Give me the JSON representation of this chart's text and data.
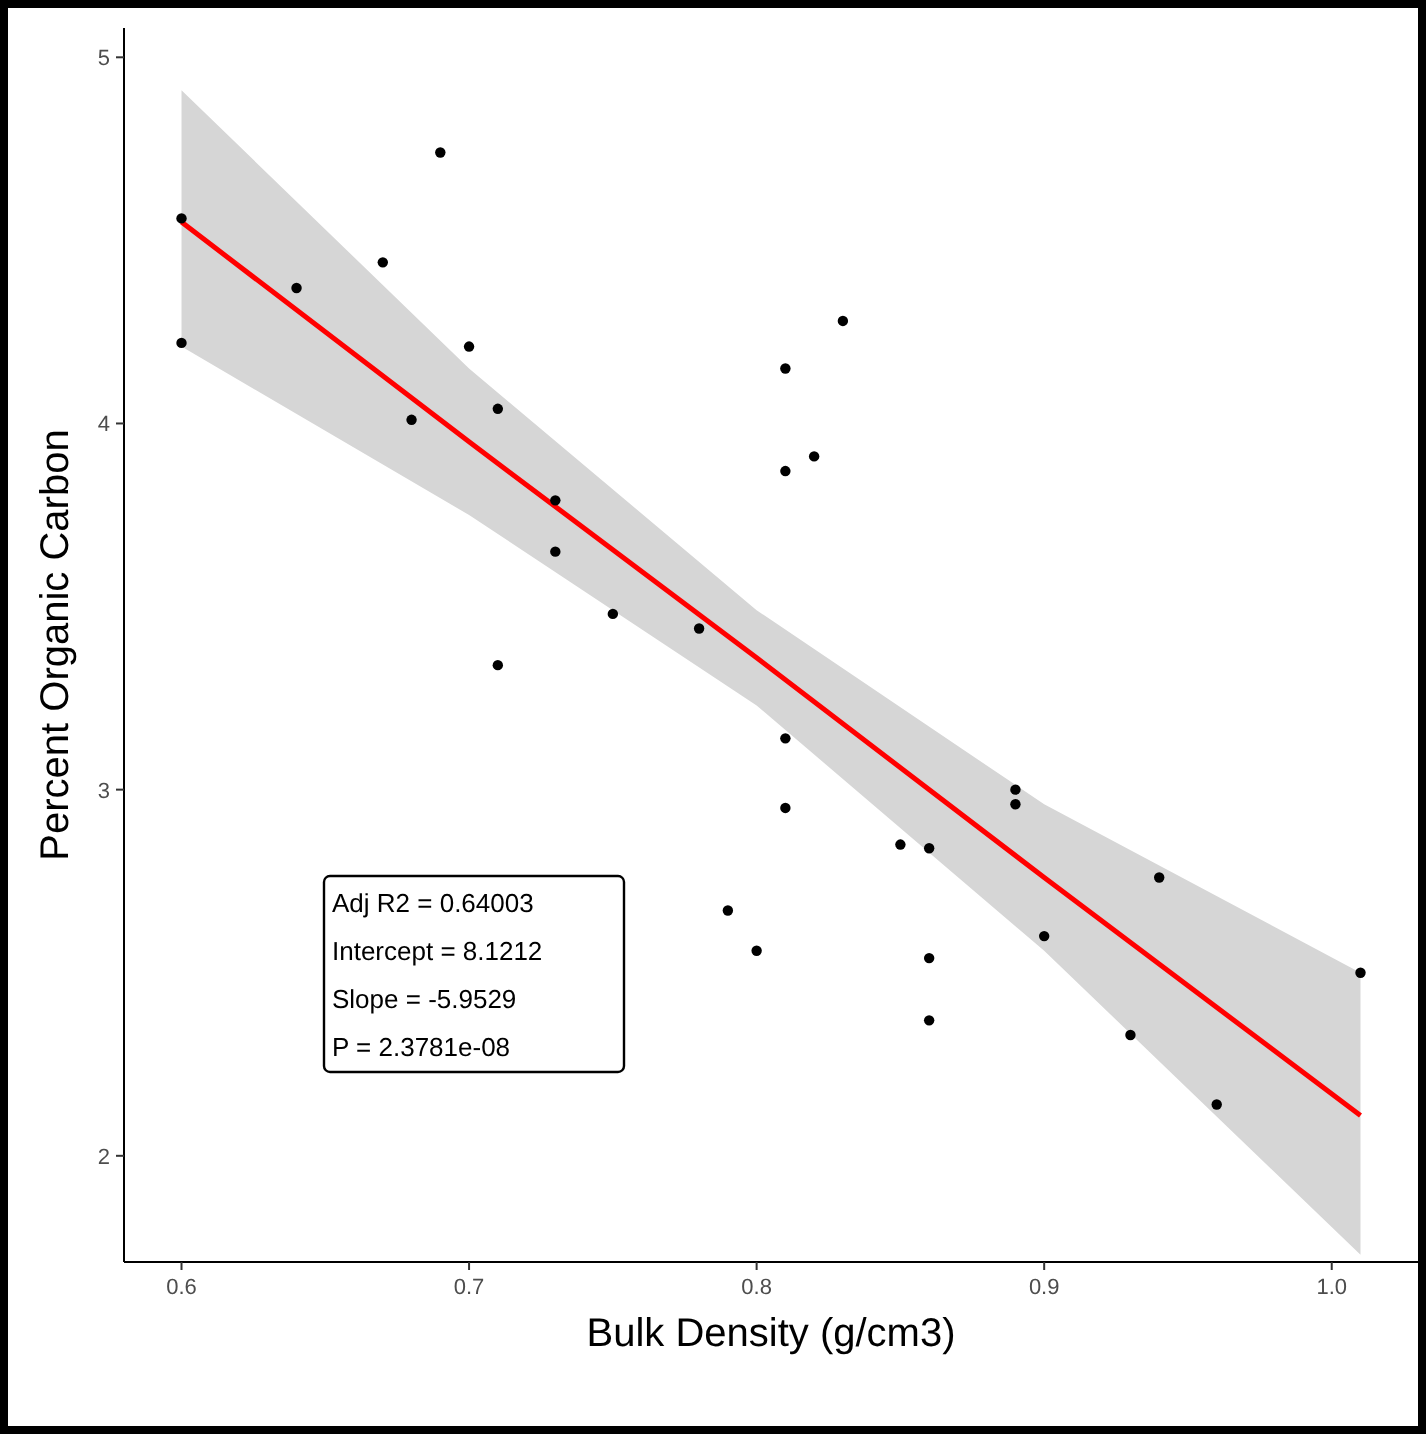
{
  "chart_data": {
    "type": "scatter",
    "xlabel": "Bulk Density (g/cm3)",
    "ylabel": "Percent Organic Carbon",
    "xlim": [
      0.58,
      1.03
    ],
    "ylim": [
      1.71,
      5.08
    ],
    "xticks": [
      {
        "value": 0.6,
        "label": "0.6"
      },
      {
        "value": 0.7,
        "label": "0.7"
      },
      {
        "value": 0.8,
        "label": "0.8"
      },
      {
        "value": 0.9,
        "label": "0.9"
      },
      {
        "value": 1.0,
        "label": "1.0"
      }
    ],
    "yticks": [
      2,
      3,
      4,
      5
    ],
    "grid": false,
    "series": [
      {
        "marker": "circle",
        "color": "#000000",
        "x": [
          0.6,
          0.6,
          0.64,
          0.67,
          0.69,
          0.68,
          0.7,
          0.71,
          0.73,
          0.73,
          0.71,
          0.75,
          0.78,
          0.81,
          0.81,
          0.82,
          0.83,
          0.81,
          0.81,
          0.85,
          0.86,
          0.79,
          0.8,
          0.86,
          0.86,
          0.89,
          0.89,
          0.9,
          0.94,
          0.93,
          0.96,
          1.01
        ],
        "values": [
          4.56,
          4.22,
          4.37,
          4.44,
          4.74,
          4.01,
          4.21,
          4.04,
          3.79,
          3.65,
          3.34,
          3.48,
          3.44,
          4.15,
          3.87,
          3.91,
          4.28,
          3.14,
          2.95,
          2.85,
          2.84,
          2.67,
          2.56,
          2.54,
          2.37,
          3.0,
          2.96,
          2.6,
          2.76,
          2.33,
          2.14,
          2.5
        ]
      },
      {
        "type": "line",
        "color": "#ff0000",
        "x": [
          0.6,
          0.7,
          0.8,
          0.9,
          1.01
        ],
        "values": [
          4.55,
          3.95,
          3.36,
          2.76,
          2.11
        ],
        "lower": [
          4.21,
          3.75,
          3.23,
          2.56,
          1.73
        ],
        "upper": [
          4.91,
          4.15,
          3.49,
          2.96,
          2.5
        ]
      }
    ],
    "annotations": [
      "Adj R2 =  0.64003",
      "Intercept = 8.1212",
      "Slope = -5.9529",
      "P = 2.3781e-08"
    ]
  }
}
